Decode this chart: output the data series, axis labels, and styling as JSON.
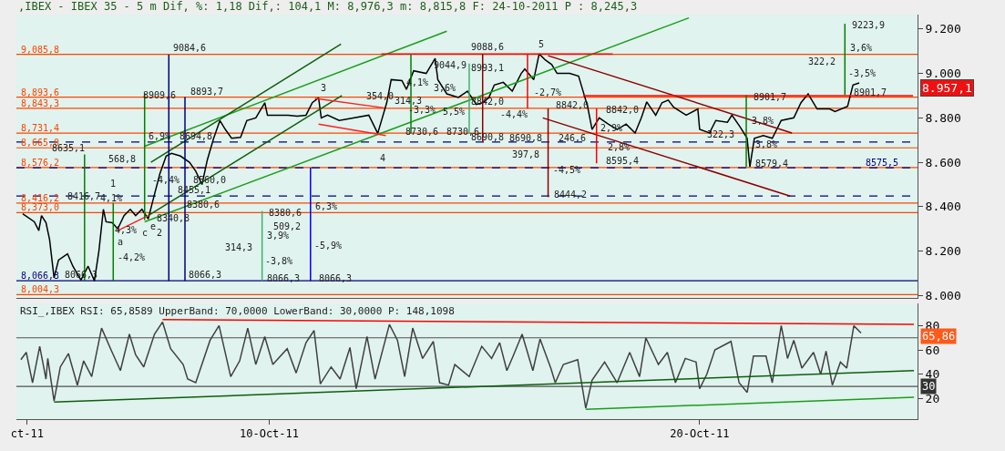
{
  "chart_data": [
    {
      "type": "line",
      "title": ",IBEX - IBEX 35 - 5 m Dif, %: 1,18 Dif,: 104,1 M: 8,976,3 m: 8,815,8 F: 24-10-2011 P : 8,245,3",
      "xlim": [
        "2011-10-04T03:00",
        "2011-10-25T01:30"
      ],
      "ylim": [
        7990,
        9265
      ],
      "yticks": [
        {
          "value": 8000,
          "label": "8.000"
        },
        {
          "value": 8200,
          "label": "8.200"
        },
        {
          "value": 8400,
          "label": "8.400"
        },
        {
          "value": 8600,
          "label": "8.600"
        },
        {
          "value": 8800,
          "label": "8.800"
        },
        {
          "value": 9000,
          "label": "9.000"
        },
        {
          "value": 9200,
          "label": "9.200"
        }
      ],
      "tick_labels": "y",
      "grid": false,
      "series": [
        {
          "color": "#000000",
          "x": [
            "2011-10-04T06:30",
            "2011-10-04T13:00",
            "2011-10-04T15:30",
            "2011-10-04T17:00",
            "2011-10-04T19:30",
            "2011-10-04T21:30",
            "2011-10-05T00:00",
            "2011-10-05T02:30",
            "2011-10-05T07:30",
            "2011-10-05T10:30",
            "2011-10-05T15:00",
            "2011-10-05T19:00",
            "2011-10-05T22:30",
            "2011-10-06T01:00",
            "2011-10-06T03:30",
            "2011-10-06T05:00",
            "2011-10-06T08:30",
            "2011-10-06T11:30",
            "2011-10-06T15:00",
            "2011-10-06T18:30",
            "2011-10-06T21:30",
            "2011-10-07T01:00",
            "2011-10-07T04:30",
            "2011-10-07T07:30",
            "2011-10-07T11:00",
            "2011-10-07T14:30",
            "2011-10-07T17:30",
            "2011-10-07T22:30",
            "2011-10-08T03:30",
            "2011-10-08T07:00",
            "2011-10-08T10:30",
            "2011-10-08T13:30",
            "2011-10-08T17:00",
            "2011-10-08T20:30",
            "2011-10-08T23:30",
            "2011-10-09T03:00",
            "2011-10-09T08:00",
            "2011-10-09T11:30",
            "2011-10-09T16:30",
            "2011-10-09T21:30",
            "2011-10-09T23:00",
            "2011-10-10T04:00",
            "2011-10-10T10:30",
            "2011-10-10T15:30",
            "2011-10-10T20:30",
            "2011-10-11T00:00",
            "2011-10-11T03:30",
            "2011-10-11T05:00",
            "2011-10-11T08:30",
            "2011-10-11T15:00",
            "2011-10-11T23:30",
            "2011-10-12T07:30",
            "2011-10-12T12:30",
            "2011-10-12T17:30",
            "2011-10-12T20:00",
            "2011-10-13T02:00",
            "2011-10-13T04:30",
            "2011-10-13T08:30",
            "2011-10-13T15:30",
            "2011-10-13T20:30",
            "2011-10-13T22:00",
            "2011-10-14T03:00",
            "2011-10-14T09:30",
            "2011-10-14T14:30",
            "2011-10-14T19:30",
            "2011-10-14T23:00",
            "2011-10-15T02:30",
            "2011-10-15T05:30",
            "2011-10-15T10:30",
            "2011-10-15T15:30",
            "2011-10-15T20:30",
            "2011-10-15T22:30",
            "2011-10-16T03:30",
            "2011-10-16T06:30",
            "2011-10-16T10:00",
            "2011-10-16T13:30",
            "2011-10-16T16:30",
            "2011-10-16T23:30",
            "2011-10-17T04:30",
            "2011-10-17T07:00",
            "2011-10-17T09:30",
            "2011-10-17T12:00",
            "2011-10-17T16:00",
            "2011-10-17T21:00",
            "2011-10-18T02:00",
            "2011-10-18T07:00",
            "2011-10-18T12:00",
            "2011-10-18T15:30",
            "2011-10-18T18:30",
            "2011-10-18T23:30",
            "2011-10-19T03:00",
            "2011-10-19T06:30",
            "2011-10-19T09:30",
            "2011-10-19T16:30",
            "2011-10-19T23:00",
            "2011-10-20T00:00",
            "2011-10-20T05:30",
            "2011-10-20T09:00",
            "2011-10-20T15:30",
            "2011-10-20T18:00",
            "2011-10-20T22:30",
            "2011-10-21T02:30",
            "2011-10-21T04:00",
            "2011-10-21T06:30",
            "2011-10-21T11:30",
            "2011-10-21T16:30",
            "2011-10-21T21:30",
            "2011-10-22T04:30",
            "2011-10-22T08:30",
            "2011-10-22T12:30",
            "2011-10-22T17:30",
            "2011-10-23T00:30",
            "2011-10-23T03:30",
            "2011-10-23T10:30",
            "2011-10-23T13:30",
            "2011-10-23T17:00"
          ],
          "values": [
            8368,
            8332,
            8292,
            8360,
            8328,
            8252,
            8080,
            8160,
            8188,
            8132,
            8070,
            8132,
            8066,
            8200,
            8388,
            8332,
            8328,
            8300,
            8360,
            8388,
            8360,
            8388,
            8345,
            8440,
            8548,
            8628,
            8640,
            8628,
            8600,
            8560,
            8500,
            8612,
            8708,
            8788,
            8748,
            8708,
            8712,
            8788,
            8800,
            8868,
            8812,
            8812,
            8812,
            8808,
            8812,
            8868,
            8890,
            8800,
            8812,
            8788,
            8800,
            8812,
            8730,
            8868,
            8972,
            8968,
            8928,
            9012,
            9000,
            9068,
            8972,
            8908,
            8892,
            8920,
            8860,
            8868,
            8892,
            8948,
            8960,
            8920,
            9000,
            9020,
            8972,
            9088,
            9060,
            9040,
            9000,
            9000,
            8988,
            8920,
            8852,
            8748,
            8800,
            8772,
            8748,
            8772,
            8732,
            8800,
            8872,
            8812,
            8868,
            8880,
            8848,
            8812,
            8840,
            8748,
            8732,
            8788,
            8780,
            8812,
            8760,
            8708,
            8579,
            8708,
            8720,
            8708,
            8788,
            8800,
            8868,
            8908,
            8840,
            8840,
            8828,
            8852,
            8948,
            8957
          ]
        },
        {
          "color": "#1a9e1a",
          "x": [
            "2011-10-07T02:30",
            "2011-10-14T03:00"
          ],
          "values": [
            8672,
            9190
          ]
        },
        {
          "color": "#1a9e1a",
          "x": [
            "2011-10-07T02:30",
            "2011-10-19T18:00"
          ],
          "values": [
            8332,
            9250
          ]
        },
        {
          "color": "#0d5e0d",
          "x": [
            "2011-10-07T06:00",
            "2011-10-11T16:00"
          ],
          "values": [
            8600,
            9132
          ]
        },
        {
          "color": "#0d5e0d",
          "x": [
            "2011-10-07T04:30",
            "2011-10-11T16:30"
          ],
          "values": [
            8360,
            8900
          ]
        },
        {
          "color": "#8b0000",
          "x": [
            "2011-10-16T11:30",
            "2011-10-22T03:30"
          ],
          "values": [
            9080,
            8732
          ]
        },
        {
          "color": "#8b0000",
          "x": [
            "2011-10-16T08:30",
            "2011-10-22T02:30"
          ],
          "values": [
            8800,
            8448
          ]
        },
        {
          "color": "#ff2020",
          "x": [
            "2011-10-11T01:30",
            "2011-10-12T16:00"
          ],
          "values": [
            8888,
            8845
          ]
        },
        {
          "color": "#ff2020",
          "x": [
            "2011-10-11T03:30",
            "2011-10-12T17:00"
          ],
          "values": [
            8772,
            8720
          ]
        },
        {
          "color": "#ff2020",
          "x": [
            "2011-10-06T11:30",
            "2011-10-07T04:30"
          ],
          "values": [
            8292,
            8360
          ]
        },
        {
          "color": "#ff0000",
          "x": [
            "2011-10-12T14:30",
            "2011-10-17T23:30"
          ],
          "values": [
            9088,
            9088
          ]
        },
        {
          "color": "#ff0000",
          "x": [
            "2011-10-17T07:00",
            "2011-10-24T23:00"
          ],
          "values": [
            8900,
            8900
          ]
        },
        {
          "color": "#000080",
          "x": [
            "2011-10-07T16:00",
            "2011-10-07T16:00"
          ],
          "values": [
            8066,
            9085
          ]
        },
        {
          "color": "#000080",
          "x": [
            "2011-10-08T01:00",
            "2011-10-08T01:00"
          ],
          "values": [
            8066,
            8894
          ]
        },
        {
          "color": "#0000ff",
          "x": [
            "2011-10-10T23:00",
            "2011-10-10T23:00"
          ],
          "values": [
            8066,
            8576
          ]
        },
        {
          "color": "#008000",
          "x": [
            "2011-10-05T17:00",
            "2011-10-05T17:00"
          ],
          "values": [
            8066,
            8635
          ]
        },
        {
          "color": "#008000",
          "x": [
            "2011-10-06T09:00",
            "2011-10-06T09:00"
          ],
          "values": [
            8066,
            8417
          ]
        },
        {
          "color": "#008000",
          "x": [
            "2011-10-07T02:30",
            "2011-10-07T02:30"
          ],
          "values": [
            8340,
            8910
          ]
        },
        {
          "color": "#3cb371",
          "x": [
            "2011-10-09T20:00",
            "2011-10-09T20:00"
          ],
          "values": [
            8066,
            8381
          ]
        },
        {
          "color": "#008000",
          "x": [
            "2011-10-13T07:00",
            "2011-10-13T07:00"
          ],
          "values": [
            8730,
            9084
          ]
        },
        {
          "color": "#3cb371",
          "x": [
            "2011-10-14T15:30",
            "2011-10-14T15:30"
          ],
          "values": [
            8730,
            9045
          ]
        },
        {
          "color": "#8b0000",
          "x": [
            "2011-10-14T23:00",
            "2011-10-14T23:00"
          ],
          "values": [
            8691,
            9089
          ]
        },
        {
          "color": "#ff0000",
          "x": [
            "2011-10-16T00:00",
            "2011-10-16T00:00"
          ],
          "values": [
            8842,
            9088
          ]
        },
        {
          "color": "#8b0000",
          "x": [
            "2011-10-16T11:30",
            "2011-10-16T11:30"
          ],
          "values": [
            8444,
            8842
          ]
        },
        {
          "color": "#ff0000",
          "x": [
            "2011-10-17T14:30",
            "2011-10-17T14:30"
          ],
          "values": [
            8595,
            8842
          ]
        },
        {
          "color": "#008000",
          "x": [
            "2011-10-21T02:00",
            "2011-10-21T02:00"
          ],
          "values": [
            8579,
            8902
          ]
        },
        {
          "color": "#008000",
          "x": [
            "2011-10-23T09:00",
            "2011-10-23T09:00"
          ],
          "values": [
            8902,
            9224
          ]
        }
      ],
      "ref_lines": [
        {
          "axis": "y",
          "value": 9085.8,
          "label": "9,085,8",
          "color": "#ff4400"
        },
        {
          "axis": "y",
          "value": 8893.6,
          "label": "8,893,6",
          "color": "#ff4400"
        },
        {
          "axis": "y",
          "value": 8843.3,
          "label": "8,843,3",
          "color": "#ff4400"
        },
        {
          "axis": "y",
          "value": 8731.4,
          "label": "8,731,4",
          "color": "#ff4400"
        },
        {
          "axis": "y",
          "value": 8665.0,
          "label": "8,665,0",
          "color": "#ff4400"
        },
        {
          "axis": "y",
          "value": 8576.2,
          "label": "8,576,2",
          "color": "#ff4400"
        },
        {
          "axis": "y",
          "value": 8416.2,
          "label": "8,416,2",
          "color": "#ff4400"
        },
        {
          "axis": "y",
          "value": 8373.0,
          "label": "8,373,0",
          "color": "#ff4400"
        },
        {
          "axis": "y",
          "value": 8004.3,
          "label": "8,004,3",
          "color": "#ff4400"
        },
        {
          "axis": "y",
          "value": 8066.3,
          "label": "8,066,3",
          "color": "#000080"
        },
        {
          "axis": "y",
          "value": 8690.8,
          "color": "#000080",
          "line_style": "dashed"
        },
        {
          "axis": "y",
          "value": 8575.5,
          "label": "8575,5",
          "color": "#000080",
          "line_style": "dashed"
        },
        {
          "axis": "y",
          "value": 8448,
          "color": "#000080",
          "line_style": "dashed"
        }
      ],
      "annotations": [
        "1",
        "2",
        "3",
        "4",
        "5",
        "a",
        "c",
        "e",
        "9084,6",
        "8909,6",
        "8893,7",
        "8635,1",
        "568,8",
        "6,9%",
        "8694,8",
        "8416,7",
        "4,1%",
        "8340,8",
        "8380,6",
        "4,3%",
        "-4,2%",
        "-4,4%",
        "8560,0",
        "8455,1",
        "314,3",
        "8380,6",
        "3,9%",
        "-3,8%",
        "509,2",
        "6,3%",
        "-5,9%",
        "8066,3",
        "8066,3",
        "8066,3",
        "8066,3",
        "9088,6",
        "354,0",
        "314,3",
        "4,1%",
        "3,6%",
        "-3,3%",
        "5,5%",
        "8730,6",
        "8730,6",
        "9044,9",
        "8993,1",
        "8842,0",
        "8690,8",
        "8690,8",
        "-4,4%",
        "-2,7%",
        "397,8",
        "-4,5%",
        "8444,2",
        "8842,0",
        "246,6",
        "2,9%",
        "2,8%",
        "8595,4",
        "8842,0",
        "9223,9",
        "3,6%",
        "322,2",
        "-3,5%",
        "8901,7",
        "8901,7",
        "3,8%",
        "322,3",
        "3,8%",
        "8579,4",
        "8.957,1"
      ]
    },
    {
      "type": "line",
      "title": "RSI_,IBEX RSI: 65,8589 UpperBand: 70,0000 LowerBand: 30,0000 P: 148,1098",
      "xlim": [
        "2011-10-04T03:00",
        "2011-10-25T01:30"
      ],
      "xticks": [
        {
          "value": "2011-10-04T09:00",
          "label": "ct-11"
        },
        {
          "value": "2011-10-10",
          "label": "10-Oct-11"
        },
        {
          "value": "2011-10-20",
          "label": "20-Oct-11"
        }
      ],
      "ylim": [
        3,
        98
      ],
      "yticks": [
        20,
        40,
        60,
        80
      ],
      "grid": false,
      "series": [
        {
          "color": "#404040",
          "x": [
            "2011-10-04T05:30",
            "2011-10-04T08:30",
            "2011-10-04T12:00",
            "2011-10-04T16:00",
            "2011-10-04T19:30",
            "2011-10-04T20:30",
            "2011-10-05T00:00",
            "2011-10-05T03:30",
            "2011-10-05T08:00",
            "2011-10-05T13:00",
            "2011-10-05T16:30",
            "2011-10-05T21:00",
            "2011-10-06T02:30",
            "2011-10-06T07:30",
            "2011-10-06T13:00",
            "2011-10-06T18:00",
            "2011-10-06T21:30",
            "2011-10-07T02:00",
            "2011-10-07T08:00",
            "2011-10-07T12:30",
            "2011-10-07T17:00",
            "2011-10-08T00:00",
            "2011-10-08T02:30",
            "2011-10-08T07:00",
            "2011-10-08T15:00",
            "2011-10-08T20:00",
            "2011-10-09T02:30",
            "2011-10-09T07:30",
            "2011-10-09T12:00",
            "2011-10-09T16:30",
            "2011-10-09T21:30",
            "2011-10-10T02:00",
            "2011-10-10T10:00",
            "2011-10-10T15:00",
            "2011-10-10T20:30",
            "2011-10-11T01:00",
            "2011-10-11T04:30",
            "2011-10-11T10:30",
            "2011-10-11T15:30",
            "2011-10-11T21:00",
            "2011-10-12T00:30",
            "2011-10-12T06:30",
            "2011-10-12T11:00",
            "2011-10-12T19:00",
            "2011-10-12T23:30",
            "2011-10-13T03:30",
            "2011-10-13T08:00",
            "2011-10-13T13:30",
            "2011-10-13T19:30",
            "2011-10-13T23:00",
            "2011-10-14T04:00",
            "2011-10-14T07:30",
            "2011-10-14T15:30",
            "2011-10-14T22:30",
            "2011-10-15T04:00",
            "2011-10-15T08:30",
            "2011-10-15T12:30",
            "2011-10-15T16:00",
            "2011-10-15T21:00",
            "2011-10-16T03:00",
            "2011-10-16T07:00",
            "2011-10-16T13:00",
            "2011-10-16T15:30",
            "2011-10-16T20:00",
            "2011-10-17T04:00",
            "2011-10-17T08:30",
            "2011-10-17T12:00",
            "2011-10-17T19:00",
            "2011-10-18T02:00",
            "2011-10-18T09:00",
            "2011-10-18T14:30",
            "2011-10-18T18:00",
            "2011-10-19T01:00",
            "2011-10-19T06:00",
            "2011-10-19T10:30",
            "2011-10-19T16:00",
            "2011-10-19T22:00",
            "2011-10-20T00:00",
            "2011-10-20T04:00",
            "2011-10-20T08:30",
            "2011-10-20T17:30",
            "2011-10-20T22:00",
            "2011-10-21T02:30",
            "2011-10-21T06:00",
            "2011-10-21T13:00",
            "2011-10-21T16:30",
            "2011-10-21T21:30",
            "2011-10-22T01:00",
            "2011-10-22T04:30",
            "2011-10-22T09:00",
            "2011-10-22T15:30",
            "2011-10-22T19:30",
            "2011-10-22T22:30",
            "2011-10-23T02:00",
            "2011-10-23T06:30",
            "2011-10-23T10:00",
            "2011-10-23T14:00",
            "2011-10-23T18:00"
          ],
          "values": [
            52,
            58,
            33,
            63,
            36,
            53,
            18,
            46,
            57,
            31,
            51,
            38,
            78,
            61,
            43,
            73,
            56,
            46,
            73,
            83,
            61,
            48,
            36,
            33,
            68,
            80,
            38,
            51,
            78,
            48,
            71,
            48,
            61,
            41,
            66,
            76,
            32,
            46,
            36,
            62,
            28,
            71,
            36,
            81,
            68,
            38,
            78,
            53,
            67,
            33,
            31,
            48,
            38,
            63,
            53,
            66,
            43,
            55,
            73,
            43,
            69,
            45,
            33,
            48,
            52,
            12,
            35,
            50,
            33,
            58,
            38,
            70,
            48,
            58,
            33,
            53,
            50,
            28,
            40,
            60,
            67,
            33,
            25,
            55,
            55,
            33,
            80,
            53,
            68,
            45,
            58,
            40,
            59,
            31,
            50,
            45,
            80,
            74
          ]
        },
        {
          "color": "#ff0000",
          "x": [
            "2011-10-07T12:30",
            "2011-10-24T23:30"
          ],
          "values": [
            85,
            81
          ]
        },
        {
          "color": "#0d5e0d",
          "x": [
            "2011-10-05T00:00",
            "2011-10-24T23:30"
          ],
          "values": [
            17,
            43
          ]
        },
        {
          "color": "#1a9e1a",
          "x": [
            "2011-10-17T08:30",
            "2011-10-24T23:30"
          ],
          "values": [
            11,
            21
          ]
        }
      ],
      "ref_lines": [
        {
          "axis": "y",
          "value": 70,
          "color": "#505050"
        },
        {
          "axis": "y",
          "value": 30,
          "color": "#505050"
        }
      ],
      "annotations": [
        "65,86",
        "30"
      ]
    }
  ]
}
